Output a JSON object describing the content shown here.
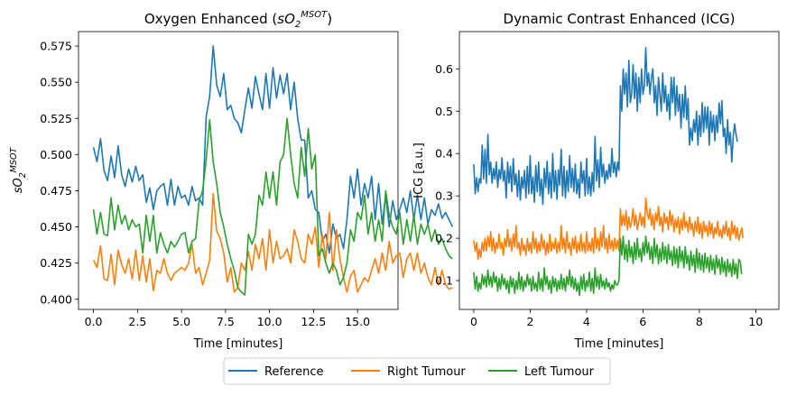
{
  "chart_data": [
    {
      "type": "line",
      "title": "Oxygen Enhanced (sO2MSOT)",
      "title_main": "Oxygen Enhanced (",
      "title_var": "sO",
      "title_sub": "2",
      "title_sup": "MSOT",
      "title_close": ")",
      "xlabel": "Time [minutes]",
      "ylabel_var": "sO",
      "ylabel_sub": "2",
      "ylabel_sup": "MSOT",
      "xlim": [
        -0.85,
        17.3
      ],
      "ylim": [
        0.393,
        0.585
      ],
      "xticks": [
        0.0,
        2.5,
        5.0,
        7.5,
        10.0,
        12.5,
        15.0
      ],
      "xtick_labels": [
        "0.0",
        "2.5",
        "5.0",
        "7.5",
        "10.0",
        "12.5",
        "15.0"
      ],
      "yticks": [
        0.4,
        0.425,
        0.45,
        0.475,
        0.5,
        0.525,
        0.55,
        0.575
      ],
      "ytick_labels": [
        "0.400",
        "0.425",
        "0.450",
        "0.475",
        "0.500",
        "0.525",
        "0.550",
        "0.575"
      ],
      "x_start": 0.0,
      "x_step": 0.2,
      "series": [
        {
          "name": "Reference",
          "color": "#1f77b4",
          "values": [
            0.505,
            0.495,
            0.511,
            0.489,
            0.482,
            0.499,
            0.484,
            0.506,
            0.486,
            0.478,
            0.49,
            0.481,
            0.492,
            0.482,
            0.486,
            0.467,
            0.477,
            0.462,
            0.475,
            0.478,
            0.48,
            0.465,
            0.483,
            0.465,
            0.478,
            0.47,
            0.472,
            0.465,
            0.478,
            0.468,
            0.47,
            0.465,
            0.526,
            0.54,
            0.575,
            0.548,
            0.54,
            0.556,
            0.531,
            0.534,
            0.525,
            0.522,
            0.515,
            0.531,
            0.546,
            0.532,
            0.554,
            0.542,
            0.531,
            0.556,
            0.532,
            0.56,
            0.539,
            0.555,
            0.542,
            0.556,
            0.531,
            0.55,
            0.525,
            0.51,
            0.51,
            0.47,
            0.475,
            0.462,
            0.46,
            0.44,
            0.445,
            0.432,
            0.452,
            0.442,
            0.445,
            0.435,
            0.455,
            0.485,
            0.47,
            0.49,
            0.465,
            0.48,
            0.47,
            0.485,
            0.455,
            0.48,
            0.452,
            0.472,
            0.45,
            0.468,
            0.455,
            0.462,
            0.47,
            0.46,
            0.475,
            0.455,
            0.472,
            0.455,
            0.47,
            0.452,
            0.462,
            0.458,
            0.466,
            0.456,
            0.46,
            0.455,
            0.45
          ]
        },
        {
          "name": "Right Tumour",
          "color": "#ff7f0e",
          "values": [
            0.427,
            0.422,
            0.437,
            0.414,
            0.413,
            0.431,
            0.41,
            0.434,
            0.424,
            0.418,
            0.428,
            0.414,
            0.434,
            0.413,
            0.43,
            0.412,
            0.428,
            0.406,
            0.42,
            0.418,
            0.428,
            0.418,
            0.413,
            0.418,
            0.42,
            0.422,
            0.42,
            0.425,
            0.438,
            0.418,
            0.422,
            0.41,
            0.418,
            0.427,
            0.473,
            0.447,
            0.442,
            0.432,
            0.412,
            0.422,
            0.405,
            0.408,
            0.425,
            0.42,
            0.433,
            0.42,
            0.438,
            0.428,
            0.442,
            0.42,
            0.448,
            0.425,
            0.44,
            0.428,
            0.43,
            0.435,
            0.425,
            0.448,
            0.44,
            0.428,
            0.425,
            0.445,
            0.438,
            0.45,
            0.422,
            0.445,
            0.428,
            0.46,
            0.42,
            0.448,
            0.428,
            0.415,
            0.405,
            0.416,
            0.42,
            0.405,
            0.41,
            0.415,
            0.412,
            0.42,
            0.428,
            0.418,
            0.432,
            0.42,
            0.44,
            0.425,
            0.43,
            0.432,
            0.415,
            0.428,
            0.432,
            0.42,
            0.432,
            0.418,
            0.425,
            0.415,
            0.41,
            0.422,
            0.41,
            0.42,
            0.41,
            0.407,
            0.408
          ]
        },
        {
          "name": "Left Tumour",
          "color": "#2ca02c",
          "values": [
            0.462,
            0.445,
            0.46,
            0.445,
            0.444,
            0.47,
            0.448,
            0.465,
            0.452,
            0.458,
            0.448,
            0.455,
            0.45,
            0.452,
            0.432,
            0.458,
            0.44,
            0.458,
            0.432,
            0.446,
            0.438,
            0.432,
            0.44,
            0.436,
            0.44,
            0.445,
            0.446,
            0.432,
            0.44,
            0.442,
            0.468,
            0.475,
            0.496,
            0.524,
            0.495,
            0.48,
            0.46,
            0.45,
            0.438,
            0.428,
            0.42,
            0.408,
            0.405,
            0.403,
            0.445,
            0.438,
            0.445,
            0.472,
            0.465,
            0.488,
            0.47,
            0.488,
            0.465,
            0.495,
            0.5,
            0.525,
            0.5,
            0.48,
            0.47,
            0.505,
            0.485,
            0.518,
            0.49,
            0.5,
            0.43,
            0.435,
            0.425,
            0.418,
            0.425,
            0.42,
            0.41,
            0.415,
            0.425,
            0.448,
            0.44,
            0.46,
            0.455,
            0.472,
            0.445,
            0.46,
            0.44,
            0.455,
            0.44,
            0.475,
            0.458,
            0.45,
            0.445,
            0.46,
            0.438,
            0.455,
            0.44,
            0.458,
            0.438,
            0.452,
            0.445,
            0.452,
            0.44,
            0.448,
            0.438,
            0.442,
            0.435,
            0.43,
            0.428
          ]
        }
      ]
    },
    {
      "type": "line",
      "title": "Dynamic Contrast Enhanced (ICG)",
      "xlabel": "Time [minutes]",
      "ylabel": "ICG [a.u.]",
      "xlim": [
        -0.51,
        10.82
      ],
      "ylim": [
        0.032,
        0.688
      ],
      "xticks": [
        0,
        2,
        4,
        6,
        8,
        10
      ],
      "xtick_labels": [
        "0",
        "2",
        "4",
        "6",
        "8",
        "10"
      ],
      "yticks": [
        0.1,
        0.2,
        0.3,
        0.4,
        0.5,
        0.6
      ],
      "ytick_labels": [
        "0.1",
        "0.2",
        "0.3",
        "0.4",
        "0.5",
        "0.6"
      ],
      "x_start": 0.0,
      "x_step": 0.05,
      "series": [
        {
          "name": "Reference",
          "color": "#1f77b4",
          "values": [
            0.375,
            0.305,
            0.343,
            0.31,
            0.341,
            0.33,
            0.42,
            0.34,
            0.41,
            0.33,
            0.445,
            0.35,
            0.38,
            0.33,
            0.365,
            0.34,
            0.38,
            0.32,
            0.362,
            0.34,
            0.39,
            0.335,
            0.36,
            0.295,
            0.38,
            0.33,
            0.37,
            0.31,
            0.388,
            0.326,
            0.352,
            0.298,
            0.36,
            0.29,
            0.345,
            0.318,
            0.36,
            0.295,
            0.37,
            0.305,
            0.395,
            0.305,
            0.345,
            0.285,
            0.372,
            0.31,
            0.38,
            0.3,
            0.34,
            0.28,
            0.365,
            0.32,
            0.382,
            0.305,
            0.355,
            0.295,
            0.4,
            0.31,
            0.36,
            0.292,
            0.362,
            0.325,
            0.41,
            0.3,
            0.37,
            0.295,
            0.36,
            0.31,
            0.395,
            0.32,
            0.365,
            0.31,
            0.375,
            0.305,
            0.34,
            0.295,
            0.38,
            0.33,
            0.36,
            0.3,
            0.388,
            0.305,
            0.345,
            0.3,
            0.355,
            0.31,
            0.44,
            0.335,
            0.385,
            0.32,
            0.415,
            0.345,
            0.375,
            0.33,
            0.36,
            0.34,
            0.375,
            0.345,
            0.412,
            0.355,
            0.38,
            0.345,
            0.38,
            0.36,
            0.56,
            0.5,
            0.6,
            0.54,
            0.59,
            0.51,
            0.62,
            0.52,
            0.54,
            0.61,
            0.53,
            0.59,
            0.5,
            0.58,
            0.52,
            0.6,
            0.54,
            0.56,
            0.65,
            0.56,
            0.59,
            0.54,
            0.58,
            0.6,
            0.52,
            0.56,
            0.49,
            0.58,
            0.54,
            0.5,
            0.59,
            0.52,
            0.56,
            0.5,
            0.54,
            0.48,
            0.58,
            0.52,
            0.58,
            0.49,
            0.56,
            0.5,
            0.54,
            0.46,
            0.54,
            0.485,
            0.56,
            0.48,
            0.53,
            0.42,
            0.46,
            0.43,
            0.48,
            0.45,
            0.5,
            0.42,
            0.49,
            0.44,
            0.52,
            0.45,
            0.51,
            0.46,
            0.51,
            0.42,
            0.5,
            0.45,
            0.49,
            0.43,
            0.49,
            0.45,
            0.52,
            0.47,
            0.525,
            0.44,
            0.46,
            0.4,
            0.48,
            0.42,
            0.45,
            0.38,
            0.44,
            0.47,
            0.445,
            0.428
          ]
        },
        {
          "name": "Right Tumour",
          "color": "#ff7f0e",
          "values": [
            0.195,
            0.17,
            0.19,
            0.15,
            0.175,
            0.155,
            0.19,
            0.17,
            0.2,
            0.17,
            0.205,
            0.18,
            0.215,
            0.17,
            0.2,
            0.165,
            0.19,
            0.175,
            0.21,
            0.175,
            0.19,
            0.16,
            0.2,
            0.18,
            0.22,
            0.18,
            0.2,
            0.17,
            0.21,
            0.18,
            0.23,
            0.175,
            0.19,
            0.16,
            0.2,
            0.17,
            0.185,
            0.16,
            0.2,
            0.17,
            0.19,
            0.165,
            0.215,
            0.175,
            0.2,
            0.165,
            0.19,
            0.17,
            0.21,
            0.175,
            0.195,
            0.16,
            0.19,
            0.165,
            0.21,
            0.17,
            0.19,
            0.175,
            0.2,
            0.165,
            0.19,
            0.17,
            0.23,
            0.175,
            0.2,
            0.165,
            0.215,
            0.175,
            0.19,
            0.16,
            0.2,
            0.175,
            0.205,
            0.165,
            0.19,
            0.17,
            0.21,
            0.17,
            0.19,
            0.165,
            0.215,
            0.17,
            0.19,
            0.17,
            0.2,
            0.165,
            0.225,
            0.175,
            0.2,
            0.17,
            0.215,
            0.18,
            0.23,
            0.175,
            0.2,
            0.165,
            0.21,
            0.175,
            0.195,
            0.17,
            0.2,
            0.175,
            0.195,
            0.17,
            0.27,
            0.23,
            0.255,
            0.23,
            0.265,
            0.22,
            0.25,
            0.225,
            0.24,
            0.27,
            0.23,
            0.255,
            0.22,
            0.24,
            0.26,
            0.23,
            0.25,
            0.225,
            0.295,
            0.26,
            0.245,
            0.27,
            0.23,
            0.255,
            0.22,
            0.26,
            0.24,
            0.275,
            0.23,
            0.25,
            0.215,
            0.26,
            0.235,
            0.25,
            0.22,
            0.265,
            0.23,
            0.255,
            0.215,
            0.245,
            0.225,
            0.25,
            0.21,
            0.245,
            0.22,
            0.26,
            0.225,
            0.24,
            0.215,
            0.25,
            0.22,
            0.235,
            0.205,
            0.24,
            0.215,
            0.25,
            0.21,
            0.235,
            0.2,
            0.24,
            0.215,
            0.23,
            0.205,
            0.24,
            0.21,
            0.235,
            0.2,
            0.225,
            0.21,
            0.24,
            0.205,
            0.22,
            0.2,
            0.23,
            0.21,
            0.24,
            0.205,
            0.225,
            0.195,
            0.24,
            0.21,
            0.23,
            0.2,
            0.225,
            0.195,
            0.21,
            0.225,
            0.2
          ]
        },
        {
          "name": "Left Tumour",
          "color": "#2ca02c",
          "values": [
            0.12,
            0.08,
            0.11,
            0.075,
            0.095,
            0.08,
            0.115,
            0.09,
            0.11,
            0.085,
            0.125,
            0.09,
            0.11,
            0.085,
            0.12,
            0.095,
            0.11,
            0.075,
            0.105,
            0.08,
            0.115,
            0.09,
            0.105,
            0.08,
            0.1,
            0.07,
            0.11,
            0.085,
            0.105,
            0.07,
            0.1,
            0.08,
            0.12,
            0.08,
            0.11,
            0.075,
            0.1,
            0.085,
            0.115,
            0.09,
            0.105,
            0.075,
            0.11,
            0.08,
            0.095,
            0.075,
            0.12,
            0.08,
            0.105,
            0.075,
            0.13,
            0.09,
            0.11,
            0.08,
            0.1,
            0.07,
            0.11,
            0.085,
            0.105,
            0.075,
            0.1,
            0.08,
            0.115,
            0.08,
            0.105,
            0.075,
            0.11,
            0.09,
            0.125,
            0.085,
            0.11,
            0.08,
            0.105,
            0.075,
            0.095,
            0.065,
            0.11,
            0.08,
            0.115,
            0.075,
            0.1,
            0.085,
            0.12,
            0.075,
            0.105,
            0.07,
            0.13,
            0.085,
            0.11,
            0.08,
            0.115,
            0.085,
            0.1,
            0.08,
            0.105,
            0.085,
            0.095,
            0.075,
            0.09,
            0.08,
            0.1,
            0.09,
            0.09,
            0.1,
            0.2,
            0.16,
            0.205,
            0.15,
            0.185,
            0.145,
            0.195,
            0.155,
            0.18,
            0.14,
            0.19,
            0.15,
            0.2,
            0.155,
            0.175,
            0.145,
            0.19,
            0.16,
            0.205,
            0.165,
            0.19,
            0.15,
            0.18,
            0.14,
            0.2,
            0.155,
            0.185,
            0.14,
            0.175,
            0.145,
            0.19,
            0.15,
            0.18,
            0.14,
            0.185,
            0.15,
            0.17,
            0.135,
            0.18,
            0.14,
            0.175,
            0.13,
            0.18,
            0.145,
            0.17,
            0.13,
            0.18,
            0.14,
            0.16,
            0.125,
            0.17,
            0.135,
            0.16,
            0.12,
            0.175,
            0.13,
            0.165,
            0.125,
            0.16,
            0.12,
            0.165,
            0.13,
            0.155,
            0.12,
            0.16,
            0.125,
            0.15,
            0.115,
            0.16,
            0.13,
            0.15,
            0.115,
            0.155,
            0.12,
            0.145,
            0.11,
            0.15,
            0.12,
            0.14,
            0.11,
            0.15,
            0.115,
            0.14,
            0.105,
            0.15,
            0.145,
            0.115
          ]
        }
      ]
    }
  ],
  "legend": {
    "placement": "bottom-center",
    "items": [
      {
        "label": "Reference",
        "color": "#1f77b4"
      },
      {
        "label": "Right Tumour",
        "color": "#ff7f0e"
      },
      {
        "label": "Left Tumour",
        "color": "#2ca02c"
      }
    ]
  }
}
